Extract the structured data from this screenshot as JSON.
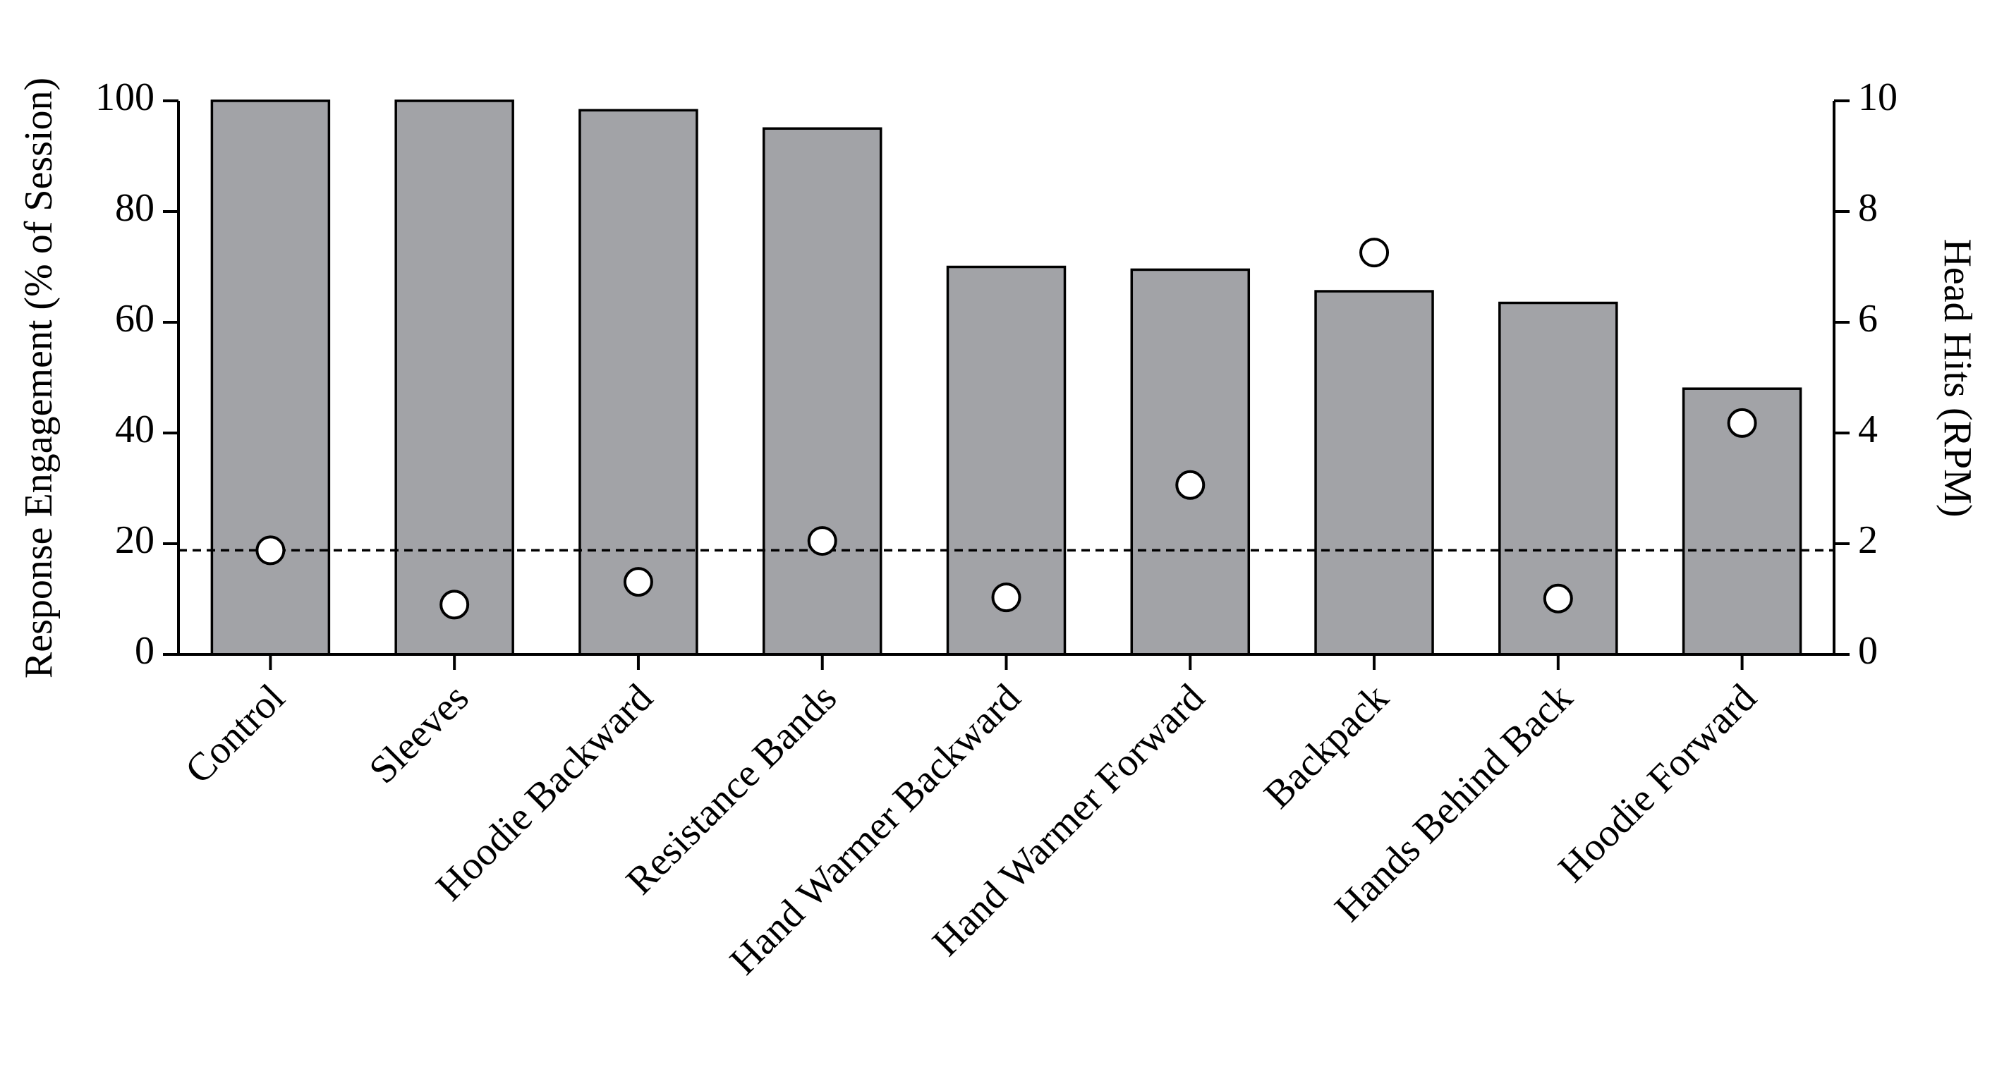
{
  "chart_data": {
    "type": "bar",
    "ylabel": "Response Engagement (% of Session)",
    "y2label": "Head Hits (RPM)",
    "categories": [
      "Control",
      "Sleeves",
      "Hoodie Backward",
      "Resistance Bands",
      "Hand Warmer Backward",
      "Hand Warmer Forward",
      "Backpack",
      "Hands Behind Back",
      "Hoodie Forward"
    ],
    "series": [
      {
        "type": "bar",
        "color": "#a2a3a7",
        "values": [
          100,
          100,
          98.3,
          95,
          70,
          69.5,
          65.6,
          63.5,
          48
        ]
      },
      {
        "type": "scatter",
        "axis": "y2",
        "color": "#ffffff",
        "values": [
          1.88,
          0.9,
          1.31,
          2.05,
          1.03,
          3.06,
          7.26,
          1.01,
          4.18
        ]
      }
    ],
    "reference_line": {
      "value": 1.88,
      "axis": "y2"
    },
    "ylim": [
      0,
      100
    ],
    "yticks": [
      0,
      20,
      40,
      60,
      80,
      100
    ],
    "y2lim": [
      0,
      10
    ],
    "y2ticks": [
      0,
      2,
      4,
      6,
      8,
      10
    ]
  }
}
